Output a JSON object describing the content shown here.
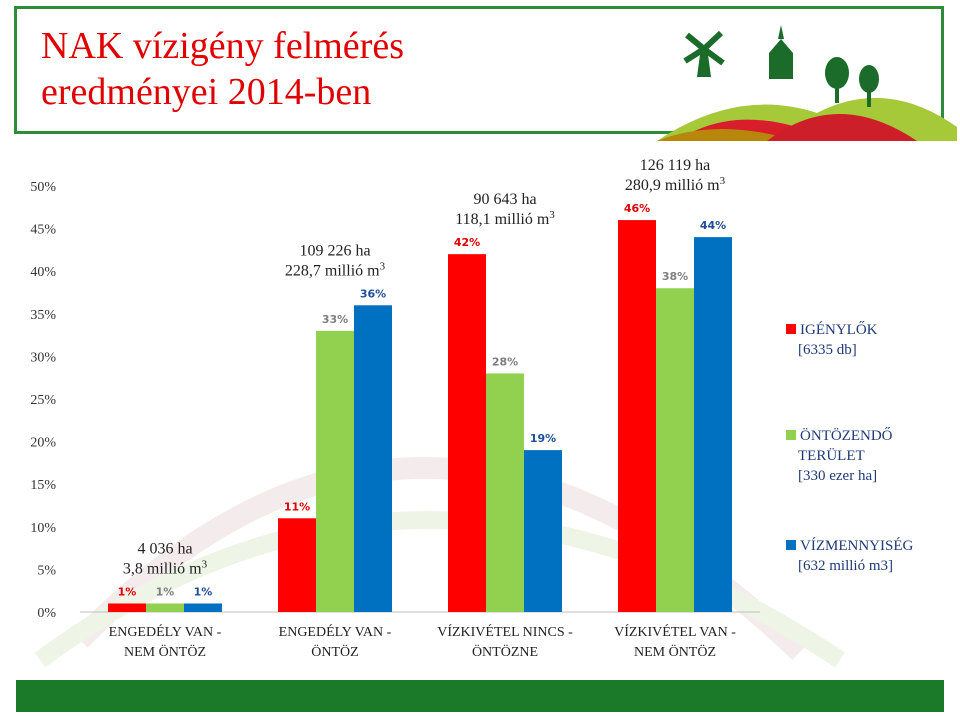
{
  "title_lines": [
    "NAK vízigény felmérés",
    "eredményei 2014-ben"
  ],
  "colors": {
    "frame": "#2e8b3a",
    "title": "#e00000",
    "bar_bottom": "#1a7a2a"
  },
  "chart_data": {
    "type": "bar",
    "categories": [
      [
        "ENGEDÉLY VAN -",
        "NEM ÖNTÖZ"
      ],
      [
        "ENGEDÉLY VAN -",
        "ÖNTÖZ"
      ],
      [
        "VÍZKIVÉTEL NINCS -",
        "ÖNTÖZNE"
      ],
      [
        "VÍZKIVÉTEL VAN -",
        "NEM ÖNTÖZ"
      ]
    ],
    "series": [
      {
        "name_lines": [
          "IGÉNYLŐK",
          "[6335 db]"
        ],
        "color": "#ff0000",
        "label_color": "#e00000",
        "values": [
          1,
          11,
          42,
          46
        ],
        "labels": [
          "1%",
          "11%",
          "42%",
          "46%"
        ]
      },
      {
        "name_lines": [
          "ÖNTÖZENDŐ",
          "TERÜLET",
          "[330 ezer ha]"
        ],
        "color": "#92d050",
        "label_color": "#7f7f7f",
        "values": [
          1,
          33,
          28,
          38
        ],
        "labels": [
          "1%",
          "33%",
          "28%",
          "38%"
        ]
      },
      {
        "name_lines": [
          "VÍZMENNYISÉG",
          "[632 millió m3]"
        ],
        "color": "#0070c0",
        "label_color": "#1f4e99",
        "values": [
          1,
          36,
          19,
          44
        ],
        "labels": [
          "1%",
          "36%",
          "19%",
          "44%"
        ]
      }
    ],
    "ylim": [
      0,
      50
    ],
    "yticks": [
      0,
      5,
      10,
      15,
      20,
      25,
      30,
      35,
      40,
      45,
      50
    ],
    "ytick_labels": [
      "0%",
      "5%",
      "10%",
      "15%",
      "20%",
      "25%",
      "30%",
      "35%",
      "40%",
      "45%",
      "50%"
    ],
    "annotations": [
      {
        "category": 0,
        "lines": [
          "4 036 ha",
          "3,8 millió m"
        ],
        "sup": "3"
      },
      {
        "category": 1,
        "lines": [
          "109 226 ha",
          "228,7 millió m"
        ],
        "sup": "3"
      },
      {
        "category": 2,
        "lines": [
          "90 643 ha",
          "118,1 millió m"
        ],
        "sup": "3"
      },
      {
        "category": 3,
        "lines": [
          "126 119  ha",
          "280,9 millió m"
        ],
        "sup": "3"
      }
    ],
    "legend_position": "right",
    "grid": false
  }
}
